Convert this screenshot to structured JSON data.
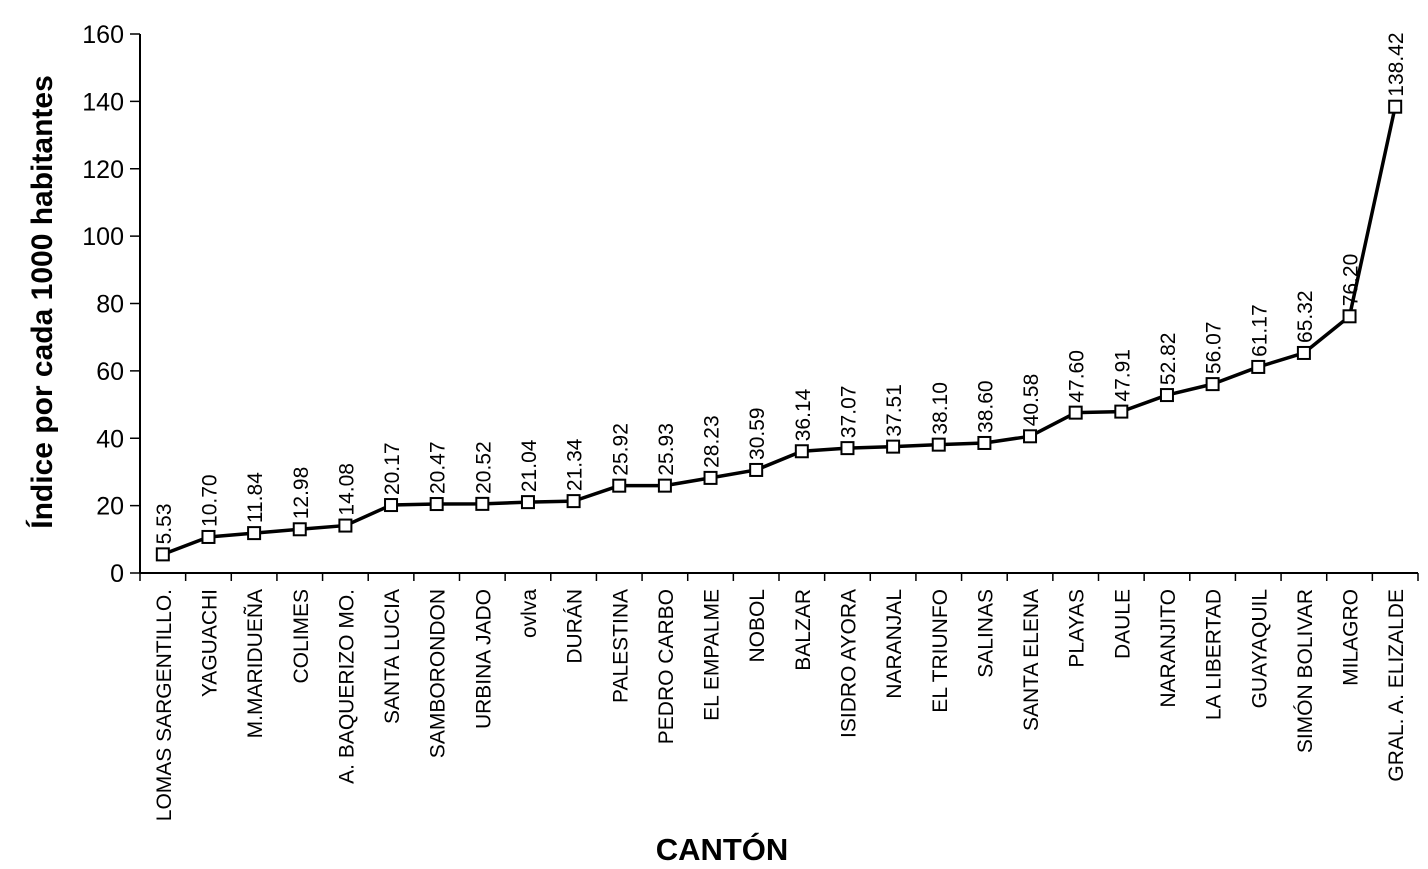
{
  "chart_data": {
    "type": "line",
    "xlabel": "CANTÓN",
    "ylabel": "Índice por cada 1000 habitantes",
    "ylim": [
      0,
      160
    ],
    "yticks": [
      0,
      20,
      40,
      60,
      80,
      100,
      120,
      140,
      160
    ],
    "grid": false,
    "marker": "square",
    "categories": [
      "LOMAS SARGENTILLO.",
      "YAGUACHI",
      "M.MARIDUEÑA",
      "COLIMES",
      "A. BAQUERIZO MO.",
      "SANTA LUCIA",
      "SAMBORONDON",
      "URBINA JADO",
      "ovlva",
      "DURÁN",
      "PALESTINA",
      "PEDRO CARBO",
      "EL EMPALME",
      "NOBOL",
      "BALZAR",
      "ISIDRO AYORA",
      "NARANJAL",
      "EL TRIUNFO",
      "SALINAS",
      "SANTA ELENA",
      "PLAYAS",
      "DAULE",
      "NARANJITO",
      "LA LIBERTAD",
      "GUAYAQUIL",
      "SIMÓN BOLIVAR",
      "MILAGRO",
      "GRAL. A. ELIZALDE"
    ],
    "values": [
      5.53,
      10.7,
      11.84,
      12.98,
      14.08,
      20.17,
      20.47,
      20.52,
      21.04,
      21.34,
      25.92,
      25.93,
      28.23,
      30.59,
      36.14,
      37.07,
      37.51,
      38.1,
      38.6,
      40.58,
      47.6,
      47.91,
      52.82,
      56.07,
      61.17,
      65.32,
      76.2,
      138.42
    ],
    "data_labels": [
      "5.53",
      "10.70",
      "11.84",
      "12.98",
      "14.08",
      "20.17",
      "20.47",
      "20.52",
      "21.04",
      "21.34",
      "25.92",
      "25.93",
      "28.23",
      "30.59",
      "36.14",
      "37.07",
      "37.51",
      "38.10",
      "38.60",
      "40.58",
      "47.60",
      "47.91",
      "52.82",
      "56.07",
      "61.17",
      "65.32",
      "76.20",
      "138.42"
    ]
  }
}
